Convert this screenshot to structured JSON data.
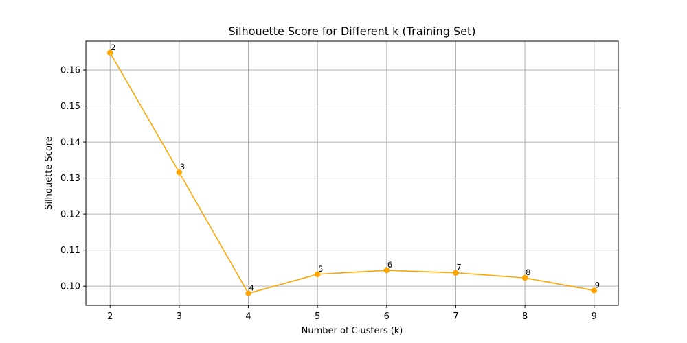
{
  "chart_data": {
    "type": "line",
    "title": "Silhouette Score for Different k (Training Set)",
    "xlabel": "Number of Clusters (k)",
    "ylabel": "Silhouette Score",
    "x": [
      2,
      3,
      4,
      5,
      6,
      7,
      8,
      9
    ],
    "series": [
      {
        "values": [
          0.1648,
          0.1316,
          0.098,
          0.1033,
          0.1044,
          0.1037,
          0.1023,
          0.0988
        ],
        "color": "#ffa500",
        "marker": "circle"
      }
    ],
    "point_labels": [
      "2",
      "3",
      "4",
      "5",
      "6",
      "7",
      "8",
      "9"
    ],
    "x_ticks": [
      "2",
      "3",
      "4",
      "5",
      "6",
      "7",
      "8",
      "9"
    ],
    "y_ticks": [
      "0.10",
      "0.11",
      "0.12",
      "0.13",
      "0.14",
      "0.15",
      "0.16"
    ],
    "xlim": [
      1.65,
      9.35
    ],
    "ylim": [
      0.0947,
      0.168
    ],
    "grid": true
  }
}
